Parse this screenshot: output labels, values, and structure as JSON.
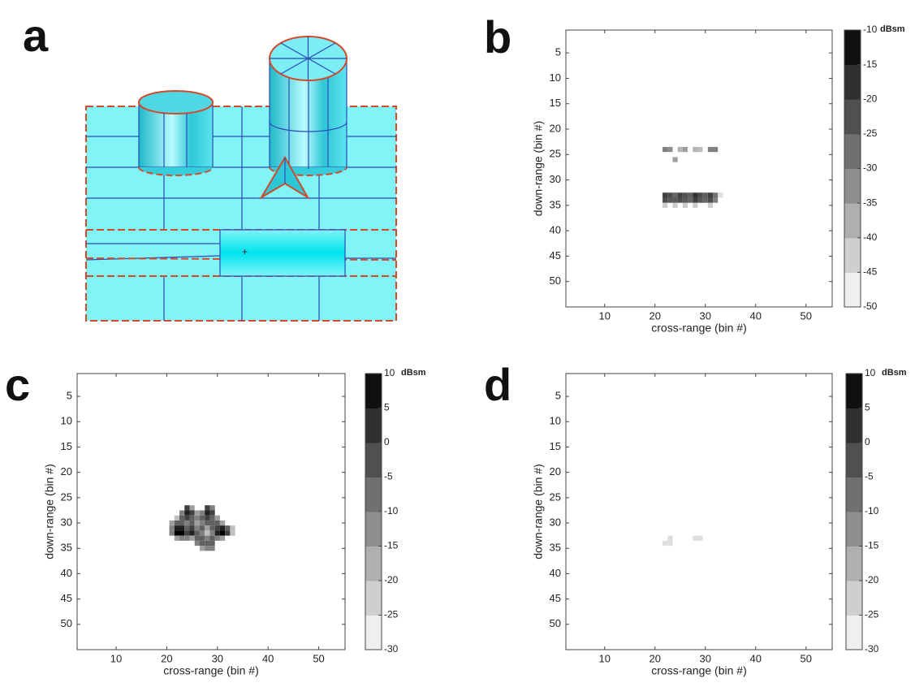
{
  "panel_labels": [
    "a",
    "b",
    "c",
    "d"
  ],
  "chart_data": [
    {
      "type": "heatmap",
      "xlabel": "cross-range (bin #)",
      "ylabel": "down-range (bin #)",
      "xlim": [
        2.3,
        55.2
      ],
      "xticks": [
        10,
        20,
        30,
        40,
        50
      ],
      "ylim": [
        0.5,
        55
      ],
      "yticks": [
        5,
        10,
        15,
        20,
        25,
        30,
        35,
        40,
        45,
        50
      ],
      "y_reversed": true,
      "colormap": "gray",
      "clim": [
        -50,
        -10
      ],
      "cticks": [
        -10,
        -15,
        -20,
        -25,
        -30,
        -35,
        -40,
        -45,
        -50
      ],
      "colorbar_label": "dBsm",
      "x": [
        22,
        23,
        25,
        26,
        28,
        29,
        31,
        32,
        24,
        22,
        23,
        24,
        25,
        26,
        27,
        28,
        29,
        30,
        31,
        32,
        33,
        22,
        23,
        24,
        25,
        26,
        27,
        28,
        29,
        30,
        31,
        32,
        22,
        24,
        26,
        28,
        31
      ],
      "y": [
        24,
        24,
        24,
        24,
        24,
        24,
        24,
        24,
        26,
        33,
        33,
        33,
        33,
        33,
        33,
        33,
        33,
        33,
        33,
        33,
        33,
        34,
        34,
        34,
        34,
        34,
        34,
        34,
        34,
        34,
        34,
        34,
        35,
        35,
        35,
        35,
        35
      ],
      "values": [
        -30,
        -32,
        -38,
        -35,
        -38,
        -40,
        -30,
        -30,
        -35,
        -20,
        -22,
        -26,
        -20,
        -23,
        -25,
        -18,
        -22,
        -25,
        -20,
        -28,
        -45,
        -22,
        -24,
        -24,
        -22,
        -24,
        -26,
        -20,
        -24,
        -26,
        -22,
        -30,
        -42,
        -42,
        -42,
        -42,
        -42
      ]
    },
    {
      "type": "heatmap",
      "xlabel": "cross-range (bin #)",
      "ylabel": "down-range (bin #)",
      "xlim": [
        2.3,
        55.2
      ],
      "xticks": [
        10,
        20,
        30,
        40,
        50
      ],
      "ylim": [
        0.5,
        55
      ],
      "yticks": [
        5,
        10,
        15,
        20,
        25,
        30,
        35,
        40,
        45,
        50
      ],
      "y_reversed": true,
      "colormap": "gray",
      "clim": [
        -30,
        10
      ],
      "cticks": [
        10,
        5,
        0,
        -5,
        -10,
        -15,
        -20,
        -25,
        -30
      ],
      "colorbar_label": "dBsm",
      "x": [
        24,
        25,
        28,
        29,
        23,
        24,
        25,
        26,
        27,
        28,
        29,
        22,
        23,
        24,
        25,
        26,
        27,
        28,
        29,
        30,
        21,
        22,
        23,
        24,
        25,
        26,
        27,
        28,
        29,
        30,
        31,
        21,
        22,
        23,
        24,
        25,
        26,
        27,
        28,
        29,
        30,
        31,
        32,
        33,
        21,
        22,
        23,
        24,
        25,
        26,
        27,
        28,
        29,
        30,
        31,
        32,
        33,
        22,
        23,
        24,
        25,
        26,
        27,
        28,
        29,
        30,
        31,
        26,
        27,
        28,
        29,
        27,
        28,
        29
      ],
      "y": [
        27,
        27,
        27,
        27,
        28,
        28,
        28,
        28,
        28,
        28,
        28,
        29,
        29,
        29,
        29,
        29,
        29,
        29,
        29,
        29,
        30,
        30,
        30,
        30,
        30,
        30,
        30,
        30,
        30,
        30,
        30,
        31,
        31,
        31,
        31,
        31,
        31,
        31,
        31,
        31,
        31,
        31,
        31,
        31,
        32,
        32,
        32,
        32,
        32,
        32,
        32,
        32,
        32,
        32,
        32,
        32,
        32,
        33,
        33,
        33,
        33,
        33,
        33,
        33,
        33,
        33,
        33,
        34,
        34,
        34,
        34,
        35,
        35,
        35
      ],
      "values": [
        0,
        -15,
        0,
        -10,
        -10,
        5,
        0,
        -15,
        -10,
        5,
        0,
        -20,
        -5,
        0,
        -5,
        -10,
        -5,
        0,
        -5,
        -15,
        -15,
        -5,
        -5,
        -10,
        -5,
        -15,
        -10,
        -5,
        -5,
        -5,
        -15,
        -10,
        5,
        5,
        -5,
        0,
        -10,
        -5,
        -15,
        -5,
        0,
        5,
        -5,
        -20,
        -10,
        10,
        10,
        0,
        5,
        -5,
        -10,
        -20,
        -10,
        5,
        10,
        0,
        -20,
        -15,
        -10,
        -10,
        -15,
        -5,
        -5,
        -10,
        -5,
        -10,
        -15,
        -10,
        -5,
        -5,
        -5,
        -15,
        -10,
        -10
      ]
    },
    {
      "type": "heatmap",
      "xlabel": "cross-range (bin #)",
      "ylabel": "down-range (bin #)",
      "xlim": [
        2.3,
        55.2
      ],
      "xticks": [
        10,
        20,
        30,
        40,
        50
      ],
      "ylim": [
        0.5,
        55
      ],
      "yticks": [
        5,
        10,
        15,
        20,
        25,
        30,
        35,
        40,
        45,
        50
      ],
      "y_reversed": true,
      "colormap": "gray",
      "clim": [
        -30,
        10
      ],
      "cticks": [
        10,
        5,
        0,
        -5,
        -10,
        -15,
        -20,
        -25,
        -30
      ],
      "colorbar_label": "dBsm",
      "x": [
        23,
        22,
        23,
        28,
        29
      ],
      "y": [
        33,
        34,
        34,
        33,
        33
      ],
      "values": [
        -25,
        -25,
        -25,
        -25,
        -25
      ]
    }
  ]
}
